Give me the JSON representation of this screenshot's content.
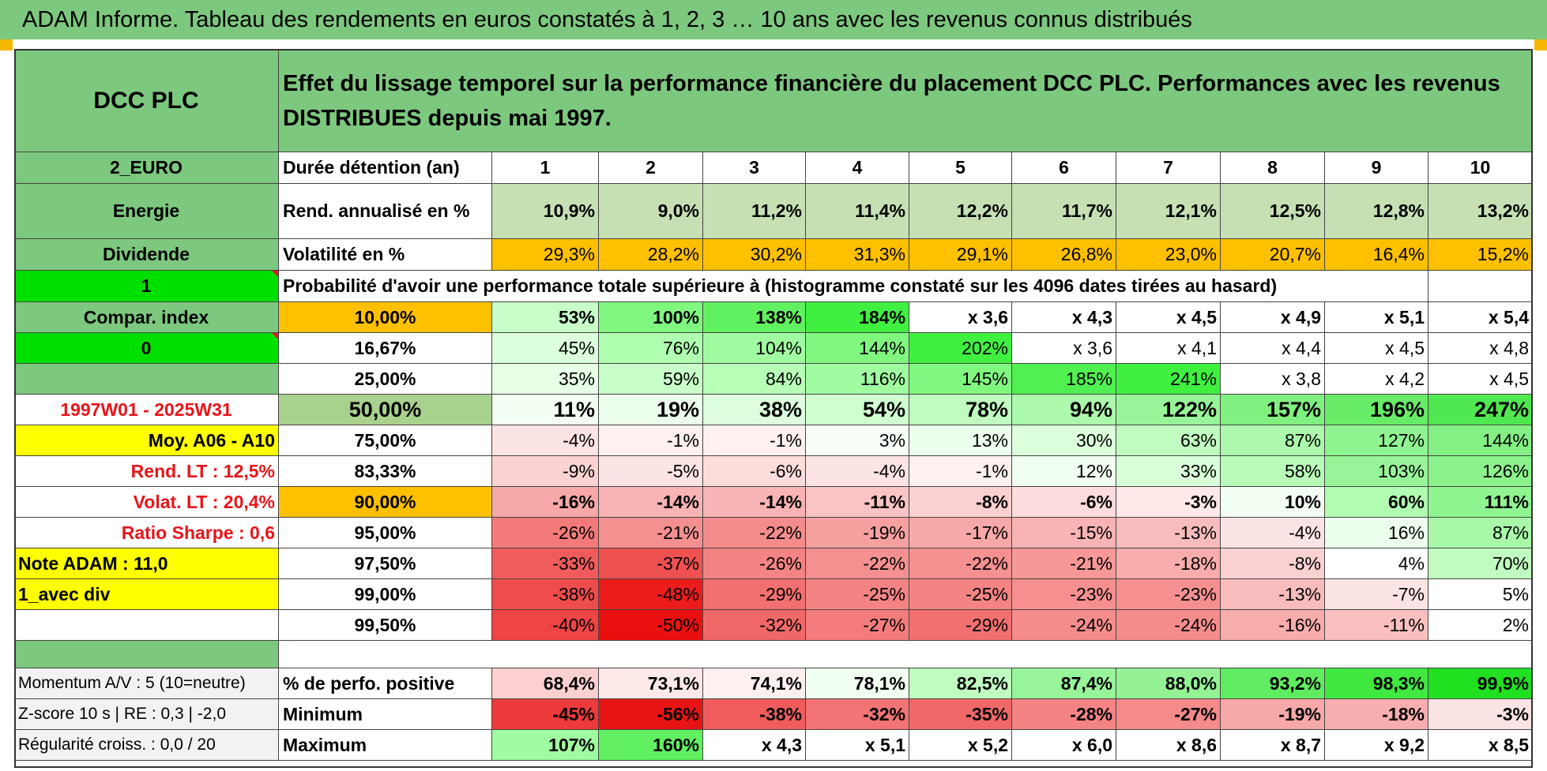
{
  "banner": "ADAM Informe. Tableau des rendements en euros constatés à 1, 2, 3 … 10 ans avec les revenus connus distribués",
  "left_panel": {
    "fund_name": "DCC PLC",
    "currency": "2_EURO",
    "sector": "Energie",
    "income_type": "Dividende",
    "flag_one": "1",
    "compar_label": "Compar. index",
    "flag_zero": "0",
    "period": "1997W01 - 2025W31",
    "moy": "Moy. A06 - A10",
    "rend_lt": "Rend. LT :    12,5%",
    "volat_lt": "Volat. LT :    20,4%",
    "sharpe": "Ratio Sharpe :     0,6",
    "note_adam": "Note ADAM : 11,0",
    "div_mode": "1_avec div",
    "momentum": "Momentum A/V : 5 (10=neutre)",
    "zscore": "Z-score 10 s | RE : 0,3 | -2,0",
    "regularite": "Régularité croiss. : 0,0 / 20"
  },
  "header": {
    "description": "Effet du lissage temporel sur la performance financière du placement DCC PLC. Performances avec les revenus DISTRIBUES depuis mai 1997.",
    "duration_label": "Durée détention (an)",
    "years": [
      "1",
      "2",
      "3",
      "4",
      "5",
      "6",
      "7",
      "8",
      "9",
      "10"
    ],
    "rend_label": "Rend. annualisé en %",
    "rend": [
      "10,9%",
      "9,0%",
      "11,2%",
      "11,4%",
      "12,2%",
      "11,7%",
      "12,1%",
      "12,5%",
      "12,8%",
      "13,2%"
    ],
    "vol_label": "Volatilité en %",
    "vol": [
      "29,3%",
      "28,2%",
      "30,2%",
      "31,3%",
      "29,1%",
      "26,8%",
      "23,0%",
      "20,7%",
      "16,4%",
      "15,2%"
    ],
    "prob_label": "Probabilité d'avoir une performance totale supérieure à (histogramme constaté sur les 4096 dates tirées au hasard)"
  },
  "prob_rows": [
    {
      "p": "10,00%",
      "v": [
        "53%",
        "100%",
        "138%",
        "184%",
        "x 3,6",
        "x 4,3",
        "x 4,5",
        "x 4,9",
        "x 5,1",
        "x 5,4"
      ]
    },
    {
      "p": "16,67%",
      "v": [
        "45%",
        "76%",
        "104%",
        "144%",
        "202%",
        "x 3,6",
        "x 4,1",
        "x 4,4",
        "x 4,5",
        "x 4,8"
      ]
    },
    {
      "p": "25,00%",
      "v": [
        "35%",
        "59%",
        "84%",
        "116%",
        "145%",
        "185%",
        "241%",
        "x 3,8",
        "x 4,2",
        "x 4,5"
      ]
    },
    {
      "p": "50,00%",
      "v": [
        "11%",
        "19%",
        "38%",
        "54%",
        "78%",
        "94%",
        "122%",
        "157%",
        "196%",
        "247%"
      ]
    },
    {
      "p": "75,00%",
      "v": [
        "-4%",
        "-1%",
        "-1%",
        "3%",
        "13%",
        "30%",
        "63%",
        "87%",
        "127%",
        "144%"
      ]
    },
    {
      "p": "83,33%",
      "v": [
        "-9%",
        "-5%",
        "-6%",
        "-4%",
        "-1%",
        "12%",
        "33%",
        "58%",
        "103%",
        "126%"
      ]
    },
    {
      "p": "90,00%",
      "v": [
        "-16%",
        "-14%",
        "-14%",
        "-11%",
        "-8%",
        "-6%",
        "-3%",
        "10%",
        "60%",
        "111%"
      ]
    },
    {
      "p": "95,00%",
      "v": [
        "-26%",
        "-21%",
        "-22%",
        "-19%",
        "-17%",
        "-15%",
        "-13%",
        "-4%",
        "16%",
        "87%"
      ]
    },
    {
      "p": "97,50%",
      "v": [
        "-33%",
        "-37%",
        "-26%",
        "-22%",
        "-22%",
        "-21%",
        "-18%",
        "-8%",
        "4%",
        "70%"
      ]
    },
    {
      "p": "99,00%",
      "v": [
        "-38%",
        "-48%",
        "-29%",
        "-25%",
        "-25%",
        "-23%",
        "-23%",
        "-13%",
        "-7%",
        "5%"
      ]
    },
    {
      "p": "99,50%",
      "v": [
        "-40%",
        "-50%",
        "-32%",
        "-27%",
        "-29%",
        "-24%",
        "-24%",
        "-16%",
        "-11%",
        "2%"
      ]
    }
  ],
  "stats": [
    {
      "label": "% de perfo. positive",
      "v": [
        "68,4%",
        "73,1%",
        "74,1%",
        "78,1%",
        "82,5%",
        "87,4%",
        "88,0%",
        "93,2%",
        "98,3%",
        "99,9%"
      ]
    },
    {
      "label": "Minimum",
      "v": [
        "-45%",
        "-56%",
        "-38%",
        "-32%",
        "-35%",
        "-28%",
        "-27%",
        "-19%",
        "-18%",
        "-3%"
      ]
    },
    {
      "label": "Maximum",
      "v": [
        "107%",
        "160%",
        "x 4,3",
        "x 5,1",
        "x 5,2",
        "x 6,0",
        "x 8,6",
        "x 8,7",
        "x 9,2",
        "x 8,5"
      ]
    }
  ],
  "colors": {
    "banner_green": "#7dc87f",
    "header_green": "#7dc87f",
    "light_green": "#c6e0b4",
    "bright_green": "#00e000",
    "orange": "#ffc000",
    "yellow": "#ffff00",
    "red_text": "#e8141a",
    "gray": "#f2f2f2",
    "mid_green": "#a9d18e"
  },
  "prob_row_fills": [
    [
      "#c8ffc8",
      "#80f880",
      "#60f060",
      "#40f040",
      "",
      "",
      "",
      "",
      "",
      ""
    ],
    [
      "#dcffdc",
      "#b0ffb0",
      "#a0fca0",
      "#80f880",
      "#40f040",
      "",
      "",
      "",
      "",
      ""
    ],
    [
      "#e6ffe6",
      "#c8ffc8",
      "#b8ffb8",
      "#a0fca0",
      "#80f880",
      "#50f050",
      "#40f040",
      "",
      "",
      ""
    ],
    [
      "#f4fff4",
      "#ecffec",
      "#ddffdd",
      "#d0ffd0",
      "#c0fcc0",
      "#acf8ac",
      "#98f498",
      "#80f080",
      "#68ec68",
      "#50e850"
    ],
    [
      "#fde4e4",
      "#fff0f0",
      "#fff0f0",
      "#f8fff8",
      "#ecffec",
      "#dcffdc",
      "#c0fcc0",
      "#acf8ac",
      "#90f490",
      "#84f084"
    ],
    [
      "#fbd2d2",
      "#fde4e4",
      "#fddcdc",
      "#fde4e4",
      "#fff0f0",
      "#f0fff0",
      "#d8ffd8",
      "#b8fcb8",
      "#98f498",
      "#8cf28c"
    ],
    [
      "#f7a8a8",
      "#f8b4b4",
      "#f8b4b4",
      "#fac4c4",
      "#fbd0d0",
      "#fcdcdc",
      "#fee8e8",
      "#f4fff4",
      "#b0fcb0",
      "#90f490"
    ],
    [
      "#f47a7a",
      "#f59090",
      "#f58c8c",
      "#f6a0a0",
      "#f7a8a8",
      "#f8b4b4",
      "#f9bcbc",
      "#fde4e4",
      "#ecffec",
      "#a8f8a8"
    ],
    [
      "#f05c5c",
      "#ef5050",
      "#f48484",
      "#f59090",
      "#f59090",
      "#f69898",
      "#f8acac",
      "#fbd0d0",
      "#ffffff",
      "#c0fcc0"
    ],
    [
      "#ef4c4c",
      "#ec1c1c",
      "#f27070",
      "#f48484",
      "#f48484",
      "#f69090",
      "#f69090",
      "#f9bcbc",
      "#fde4e4",
      "#ffffff"
    ],
    [
      "#ee4444",
      "#ea1010",
      "#f16868",
      "#f47c7c",
      "#f27070",
      "#f58c8c",
      "#f58c8c",
      "#f8acac",
      "#fac0c0",
      "#ffffff"
    ]
  ],
  "stats_fills": [
    [
      "#fcd0d0",
      "#fde8e8",
      "#fef0f0",
      "#f0fff0",
      "#c0fcc0",
      "#98f498",
      "#94f294",
      "#60ec60",
      "#40e840",
      "#20e020"
    ],
    [
      "#ee3a3a",
      "#e81414",
      "#f05c5c",
      "#f27474",
      "#f16868",
      "#f48484",
      "#f58a8a",
      "#f7a8a8",
      "#f8aeae",
      "#fde4e4"
    ],
    [
      "#a0fca0",
      "#60f060",
      "",
      "",
      "",
      "",
      "",
      "",
      "",
      ""
    ]
  ]
}
